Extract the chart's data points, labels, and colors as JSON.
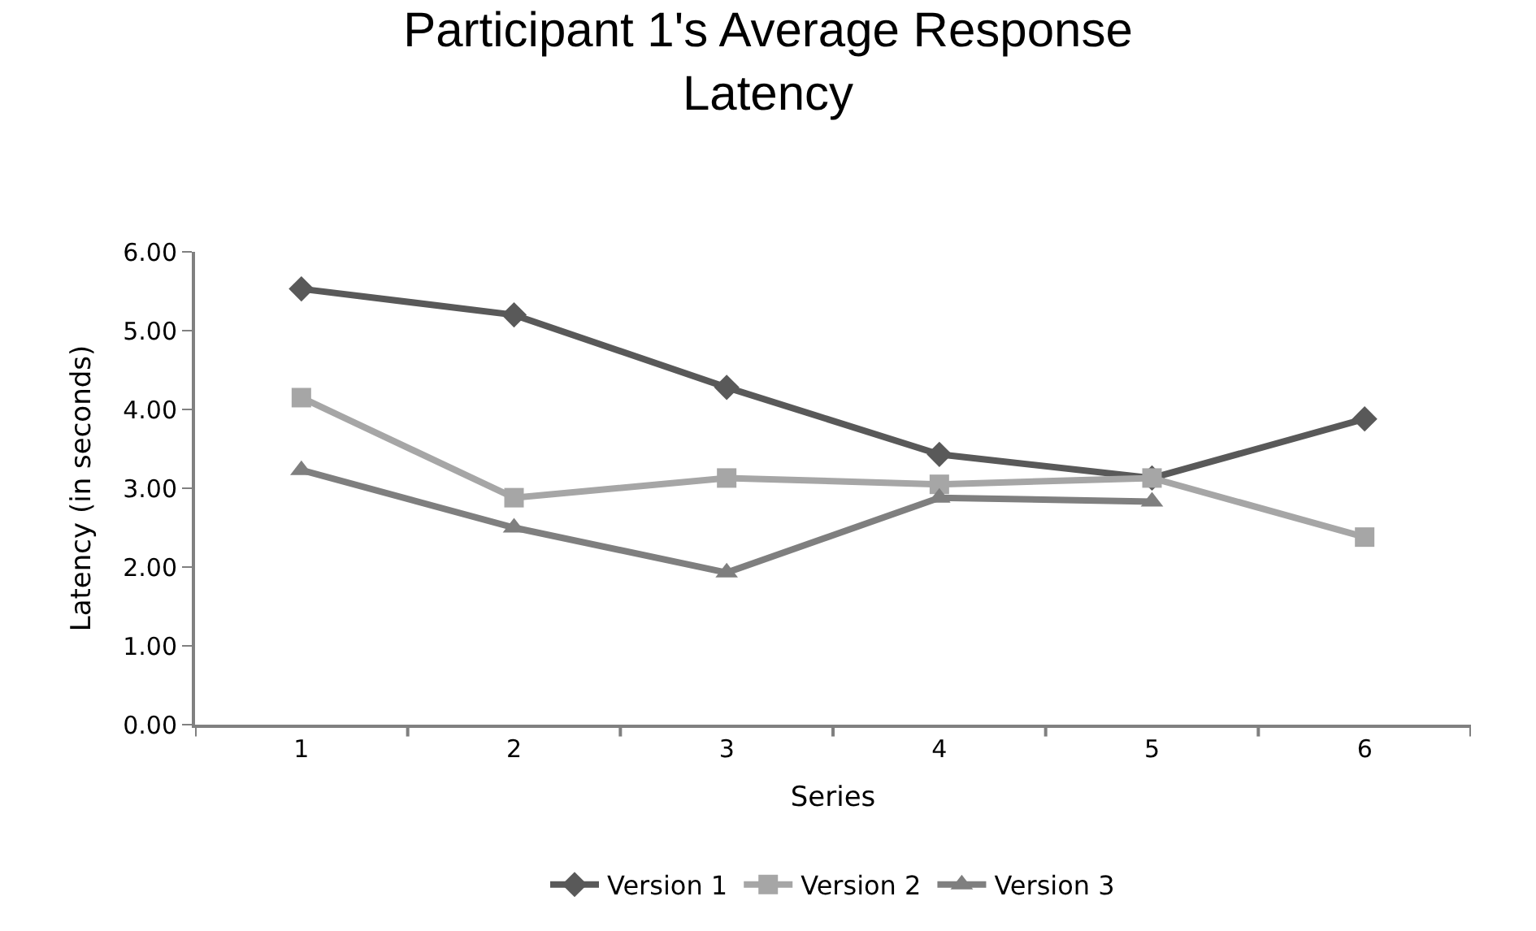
{
  "chart_data": {
    "type": "line",
    "title": "Participant 1's Average Response Latency",
    "xlabel": "Series",
    "ylabel": "Latency (in seconds)",
    "categories": [
      "1",
      "2",
      "3",
      "4",
      "5",
      "6"
    ],
    "series": [
      {
        "name": "Version 1",
        "color": "#595959",
        "marker": "diamond",
        "values": [
          5.53,
          5.2,
          4.28,
          3.43,
          3.13,
          3.88
        ]
      },
      {
        "name": "Version 2",
        "color": "#a6a6a6",
        "marker": "square",
        "values": [
          4.15,
          2.88,
          3.13,
          3.05,
          3.13,
          2.38
        ]
      },
      {
        "name": "Version 3",
        "color": "#7f7f7f",
        "marker": "triangle",
        "values": [
          3.23,
          2.5,
          1.93,
          2.88,
          2.83,
          null
        ]
      }
    ],
    "ylim": [
      0,
      6
    ],
    "yticks": [
      {
        "value": 0,
        "label": "0.00"
      },
      {
        "value": 1,
        "label": "1.00"
      },
      {
        "value": 2,
        "label": "2.00"
      },
      {
        "value": 3,
        "label": "3.00"
      },
      {
        "value": 4,
        "label": "4.00"
      },
      {
        "value": 5,
        "label": "5.00"
      },
      {
        "value": 6,
        "label": "6.00"
      }
    ],
    "legend": "bottom",
    "line_style": "solid"
  }
}
